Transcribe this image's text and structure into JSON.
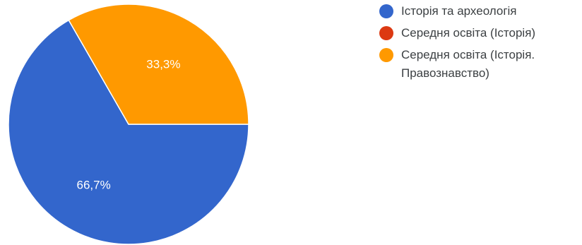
{
  "chart_data": {
    "type": "pie",
    "slices": [
      {
        "label": "Історія та археологія",
        "value": 66.7,
        "display": "66,7%",
        "color": "#3366cc"
      },
      {
        "label": "Середня освіта (Історія)",
        "value": 0,
        "display": "",
        "color": "#dc3912"
      },
      {
        "label": "Середня освіта (Історія. Правознавство)",
        "value": 33.3,
        "display": "33,3%",
        "color": "#ff9900"
      }
    ],
    "legend_position": "right"
  }
}
